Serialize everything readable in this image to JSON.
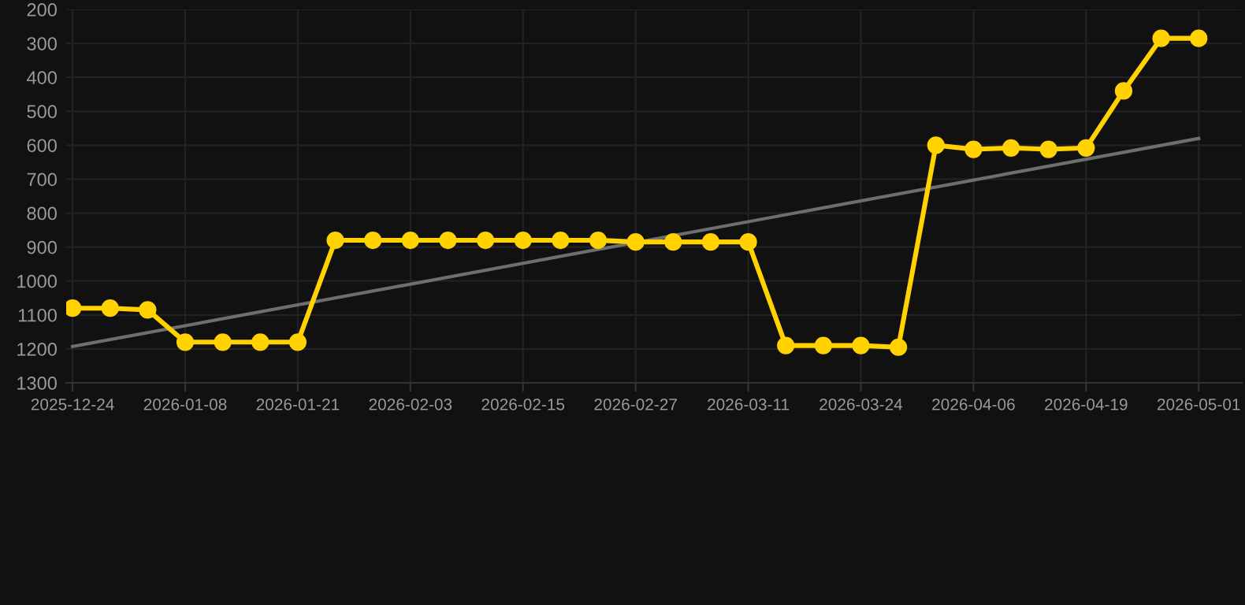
{
  "chart_data": {
    "type": "line",
    "categories": [
      "2025-12-24",
      null,
      null,
      "2026-01-08",
      null,
      null,
      "2026-01-21",
      null,
      null,
      "2026-02-03",
      null,
      null,
      "2026-02-15",
      null,
      null,
      "2026-02-27",
      null,
      null,
      "2026-03-11",
      null,
      null,
      "2026-03-24",
      null,
      null,
      "2026-04-06",
      null,
      null,
      "2026-04-19",
      null,
      null,
      "2026-05-01"
    ],
    "series": [
      {
        "color": "#ffd200",
        "marker": "circle",
        "values": [
          1080,
          1080,
          1085,
          1180,
          1180,
          1180,
          1180,
          880,
          880,
          880,
          880,
          880,
          880,
          880,
          880,
          885,
          885,
          885,
          885,
          1190,
          1190,
          1190,
          1195,
          600,
          612,
          608,
          612,
          608,
          440,
          285,
          285
        ]
      },
      {
        "color": "#6e6e6e",
        "marker": "none",
        "values": [
          1193,
          null,
          null,
          null,
          null,
          null,
          null,
          null,
          null,
          null,
          null,
          null,
          null,
          null,
          null,
          null,
          null,
          null,
          null,
          null,
          null,
          null,
          null,
          null,
          null,
          null,
          null,
          null,
          null,
          null,
          580
        ]
      }
    ],
    "ylim": [
      1300,
      200
    ],
    "yticks": [
      200,
      300,
      400,
      500,
      600,
      700,
      800,
      900,
      1000,
      1100,
      1200,
      1300
    ],
    "grid": true
  }
}
